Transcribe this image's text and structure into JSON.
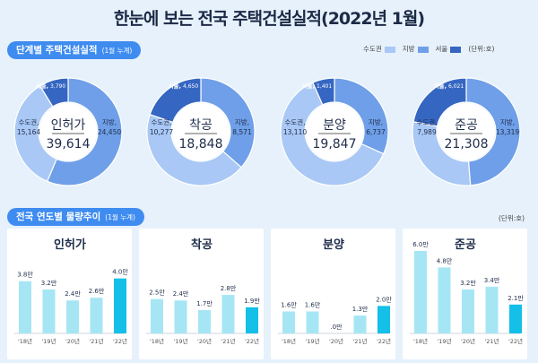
{
  "title": "한눈에 보는 전국 주택건설실적(2022년 1월)",
  "section1": {
    "label": "단계별 주택건설실적",
    "sub": "(1월 누계)"
  },
  "section2": {
    "label": "전국 연도별 물량추이",
    "sub": "(1월 누계)"
  },
  "legend": [
    {
      "name": "수도권",
      "color": "#a9c8f5"
    },
    {
      "name": "지방",
      "color": "#6f9fe8"
    },
    {
      "name": "서울",
      "color": "#3566c2"
    }
  ],
  "unit": "(단위:호)",
  "colors": {
    "ring_light": "#a9c8f5",
    "ring_mid": "#6f9fe8",
    "ring_dark": "#3566c2",
    "bar_light": "#a6e6f4",
    "bar_current": "#14bfe8"
  },
  "chart_data": [
    {
      "type": "pie",
      "center_label": "인허가",
      "total": "39,614",
      "slices": [
        {
          "name": "수도권",
          "label": "수도권,",
          "value": 15164,
          "value_label": "15,164"
        },
        {
          "name": "지방",
          "label": "지방,",
          "value": 24450,
          "value_label": "24,450"
        },
        {
          "name": "서울",
          "label": "서울,",
          "value": 3790,
          "value_label": "3,790"
        }
      ]
    },
    {
      "type": "pie",
      "center_label": "착공",
      "total": "18,848",
      "slices": [
        {
          "name": "수도권",
          "label": "수도권,",
          "value": 10277,
          "value_label": "10,277"
        },
        {
          "name": "지방",
          "label": "지방,",
          "value": 8571,
          "value_label": "8,571"
        },
        {
          "name": "서울",
          "label": "서울,",
          "value": 4650,
          "value_label": "4,650"
        }
      ]
    },
    {
      "type": "pie",
      "center_label": "분양",
      "total": "19,847",
      "slices": [
        {
          "name": "수도권",
          "label": "수도권,",
          "value": 13110,
          "value_label": "13,110"
        },
        {
          "name": "지방",
          "label": "지방,",
          "value": 6737,
          "value_label": "6,737"
        },
        {
          "name": "서울",
          "label": "서울,",
          "value": 1401,
          "value_label": "1,401"
        }
      ]
    },
    {
      "type": "pie",
      "center_label": "준공",
      "total": "21,308",
      "slices": [
        {
          "name": "수도권",
          "label": "수도권,",
          "value": 7989,
          "value_label": "7,989"
        },
        {
          "name": "지방",
          "label": "지방,",
          "value": 13319,
          "value_label": "13,319"
        },
        {
          "name": "서울",
          "label": "서울,",
          "value": 6021,
          "value_label": "6,021"
        }
      ]
    },
    {
      "type": "bar",
      "title": "인허가",
      "categories": [
        "'18년",
        "'19년",
        "'20년",
        "'21년",
        "'22년"
      ],
      "values": [
        3.8,
        3.2,
        2.4,
        2.6,
        4.0
      ],
      "value_labels": [
        "3.8만",
        "3.2만",
        "2.4만",
        "2.6만",
        "4.0만"
      ],
      "ylim": [
        0,
        6.0
      ]
    },
    {
      "type": "bar",
      "title": "착공",
      "categories": [
        "'18년",
        "'19년",
        "'20년",
        "'21년",
        "'22년"
      ],
      "values": [
        2.5,
        2.4,
        1.7,
        2.8,
        1.9
      ],
      "value_labels": [
        "2.5만",
        "2.4만",
        "1.7만",
        "2.8만",
        "1.9만"
      ],
      "ylim": [
        0,
        6.0
      ]
    },
    {
      "type": "bar",
      "title": "분양",
      "categories": [
        "'18년",
        "'19년",
        "'20년",
        "'21년",
        "'22년"
      ],
      "values": [
        1.6,
        1.6,
        0.0,
        1.3,
        2.0
      ],
      "value_labels": [
        "1.6만",
        "1.6만",
        ".0만",
        "1.3만",
        "2.0만"
      ],
      "ylim": [
        0,
        6.0
      ]
    },
    {
      "type": "bar",
      "title": "준공",
      "categories": [
        "'18년",
        "'19년",
        "'20년",
        "'21년",
        "'22년"
      ],
      "values": [
        6.0,
        4.8,
        3.2,
        3.4,
        2.1
      ],
      "value_labels": [
        "6.0만",
        "4.8만",
        "3.2만",
        "3.4만",
        "2.1만"
      ],
      "ylim": [
        0,
        6.0
      ]
    }
  ]
}
